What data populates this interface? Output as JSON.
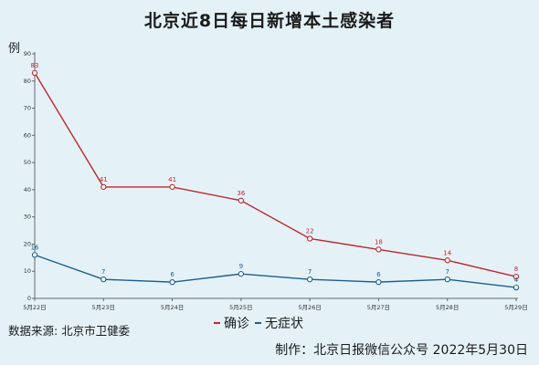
{
  "chart_data": {
    "type": "line",
    "title": "北京近8日每日新增本土感染者",
    "ylabel": "例",
    "ylim": [
      0,
      90
    ],
    "yticks": [
      0,
      10,
      20,
      30,
      40,
      50,
      60,
      70,
      80,
      90
    ],
    "grid": false,
    "legend_position": "bottom-center",
    "categories": [
      "5月22日",
      "5月23日",
      "5月24日",
      "5月25日",
      "5月26日",
      "5月27日",
      "5月28日",
      "5月29日"
    ],
    "series": [
      {
        "name": "确诊",
        "color": "#c0272d",
        "values": [
          83,
          41,
          41,
          36,
          22,
          18,
          14,
          8
        ]
      },
      {
        "name": "无症状",
        "color": "#1f5d8f",
        "values": [
          16,
          7,
          6,
          9,
          7,
          6,
          7,
          4
        ]
      }
    ]
  },
  "source": "数据来源: 北京市卫健委",
  "credit": "制作：北京日报微信公众号 2022年5月30日"
}
